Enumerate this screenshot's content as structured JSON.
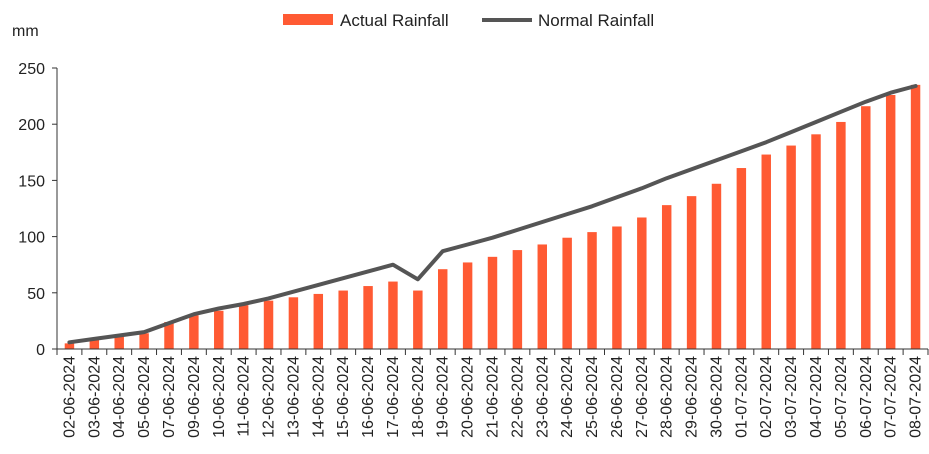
{
  "chart_data": {
    "type": "bar",
    "ylabel": "mm",
    "ylim": [
      0,
      250
    ],
    "yticks": [
      0,
      50,
      100,
      150,
      200,
      250
    ],
    "grid": false,
    "legend_position": "top-center",
    "categories": [
      "02-06-2024",
      "03-06-2024",
      "04-06-2024",
      "05-06-2024",
      "07-06-2024",
      "09-06-2024",
      "10-06-2024",
      "11-06-2024",
      "12-06-2024",
      "13-06-2024",
      "14-06-2024",
      "15-06-2024",
      "16-06-2024",
      "17-06-2024",
      "18-06-2024",
      "19-06-2024",
      "20-06-2024",
      "21-06-2024",
      "22-06-2024",
      "23-06-2024",
      "24-06-2024",
      "25-06-2024",
      "26-06-2024",
      "27-06-2024",
      "28-06-2024",
      "29-06-2024",
      "30-06-2024",
      "01-07-2024",
      "02-07-2024",
      "03-07-2024",
      "04-07-2024",
      "05-07-2024",
      "06-07-2024",
      "07-07-2024",
      "08-07-2024"
    ],
    "series": [
      {
        "name": "Actual Rainfall",
        "type": "bar",
        "color": "#FF5A33",
        "values": [
          5,
          9,
          11,
          14,
          24,
          30,
          34,
          39,
          43,
          46,
          49,
          52,
          56,
          60,
          52,
          71,
          77,
          82,
          88,
          93,
          99,
          104,
          109,
          117,
          128,
          136,
          147,
          161,
          173,
          181,
          191,
          202,
          216,
          226,
          235
        ]
      },
      {
        "name": "Normal Rainfall",
        "type": "line",
        "color": "#555555",
        "values": [
          6,
          9,
          12,
          15,
          23,
          31,
          36,
          40,
          45,
          51,
          57,
          63,
          69,
          75,
          62,
          87,
          93,
          99,
          106,
          113,
          120,
          127,
          135,
          143,
          152,
          160,
          168,
          176,
          184,
          193,
          202,
          211,
          220,
          228,
          234
        ]
      }
    ]
  }
}
